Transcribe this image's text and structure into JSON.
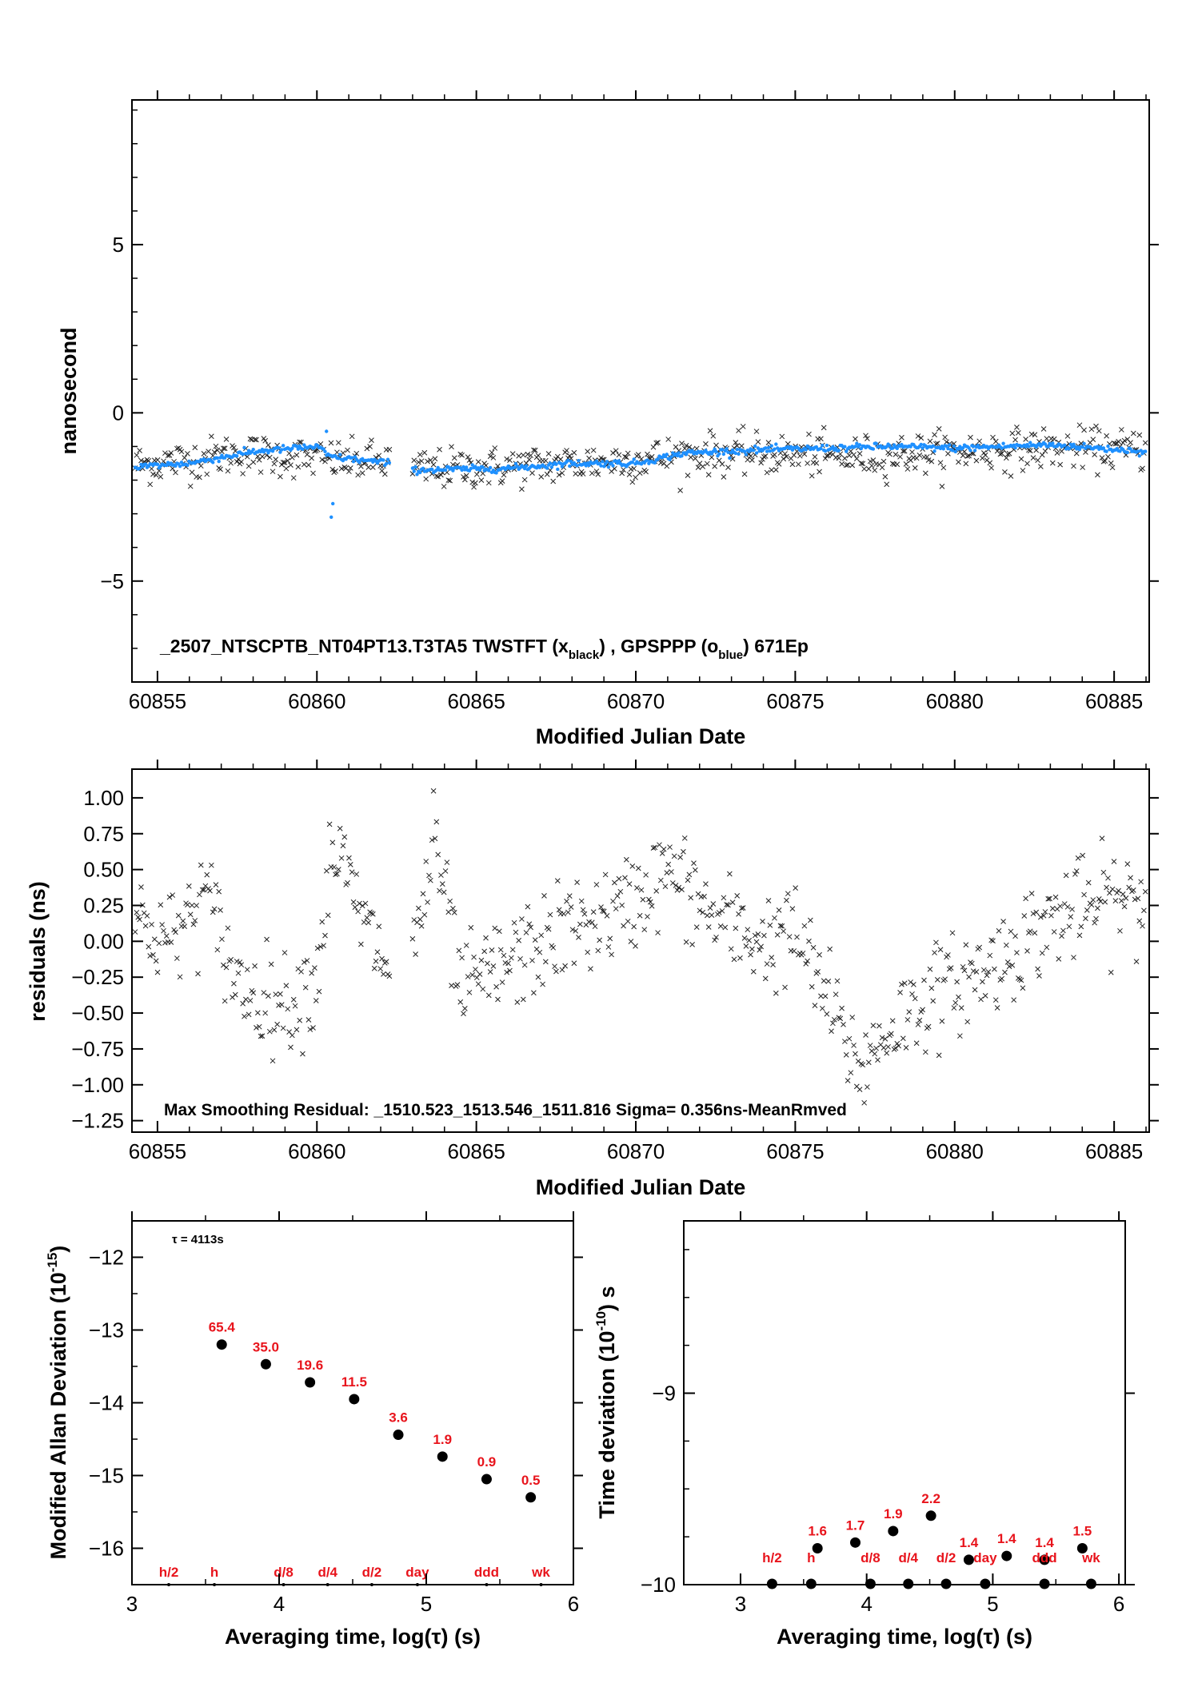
{
  "colors": {
    "twstft": "#222222",
    "gpsppp": "#1e90ff",
    "label": "#e8141c"
  },
  "chart_data": [
    {
      "type": "scatter",
      "xlabel": "Modified Julian Date",
      "ylabel": "nanosecond",
      "xlim": [
        60854.2,
        60886.1
      ],
      "ylim": [
        -8,
        9.3
      ],
      "xticks": [
        60855,
        60860,
        60865,
        60870,
        60875,
        60880,
        60885
      ],
      "yticks": [
        5,
        0,
        -5
      ],
      "ytick_labels": [
        "5",
        "0",
        "−5"
      ],
      "annotation": {
        "main": "_2507_NTSCPTB_NT04PT13.T3TA5     TWSTFT (x",
        "sub1": "black",
        "mid": ") ,  GPSPPP (o",
        "sub2": "blue",
        "end": ")  671Ep"
      },
      "series": [
        {
          "marker": "x",
          "color": "black",
          "segments": [
            [
              60854.3,
              60862.3
            ],
            [
              60863.0,
              60886.0
            ]
          ],
          "trend": [
            [
              60854.3,
              -1.55
            ],
            [
              60856.0,
              -1.4
            ],
            [
              60857.5,
              -1.2
            ],
            [
              60859.0,
              -1.3
            ],
            [
              60860.0,
              -1.35
            ],
            [
              60861.0,
              -1.45
            ],
            [
              60862.3,
              -1.45
            ],
            [
              60863.0,
              -1.7
            ],
            [
              60866.0,
              -1.6
            ],
            [
              60868.0,
              -1.5
            ],
            [
              60870.0,
              -1.4
            ],
            [
              60872.0,
              -1.2
            ],
            [
              60875.0,
              -1.25
            ],
            [
              60877.0,
              -1.3
            ],
            [
              60880.0,
              -1.15
            ],
            [
              60883.0,
              -1.05
            ],
            [
              60886.0,
              -1.1
            ]
          ],
          "noise_sd": 0.3
        },
        {
          "marker": "dot",
          "color": "#1e90ff",
          "segments": [
            [
              60854.3,
              60862.3
            ],
            [
              60863.0,
              60886.0
            ]
          ],
          "trend": [
            [
              60854.3,
              -1.6
            ],
            [
              60856.0,
              -1.5
            ],
            [
              60858.0,
              -1.15
            ],
            [
              60860.0,
              -1.0
            ],
            [
              60860.4,
              -1.3
            ],
            [
              60862.3,
              -1.5
            ],
            [
              60863.0,
              -1.7
            ],
            [
              60866.0,
              -1.65
            ],
            [
              60868.0,
              -1.5
            ],
            [
              60870.0,
              -1.5
            ],
            [
              60871.5,
              -1.2
            ],
            [
              60874.0,
              -1.1
            ],
            [
              60876.0,
              -1.05
            ],
            [
              60878.0,
              -1.0
            ],
            [
              60880.0,
              -1.05
            ],
            [
              60883.0,
              -0.95
            ],
            [
              60886.0,
              -1.15
            ]
          ],
          "noise_sd": 0.05,
          "spikes": [
            [
              60860.3,
              -0.55
            ],
            [
              60860.45,
              -3.1
            ],
            [
              60860.5,
              -2.7
            ]
          ]
        }
      ]
    },
    {
      "type": "scatter",
      "xlabel": "Modified Julian Date",
      "ylabel": "residuals (ns)",
      "xlim": [
        60854.2,
        60886.1
      ],
      "ylim": [
        -1.33,
        1.2
      ],
      "xticks": [
        60855,
        60860,
        60865,
        60870,
        60875,
        60880,
        60885
      ],
      "yticks": [
        1.0,
        0.75,
        0.5,
        0.25,
        0.0,
        -0.25,
        -0.5,
        -0.75,
        -1.0,
        -1.25
      ],
      "ytick_labels": [
        "1.00",
        "0.75",
        "0.50",
        "0.25",
        "0.00",
        "−0.25",
        "−0.50",
        "−0.75",
        "−1.00",
        "−1.25"
      ],
      "annotation": "Max Smoothing Residual: _1510.523_1513.546_1511.816  Sigma= 0.356ns-MeanRmved",
      "series": [
        {
          "marker": "x",
          "color": "black",
          "segments": [
            [
              60854.3,
              60862.3
            ],
            [
              60863.0,
              60886.0
            ]
          ],
          "trend": [
            [
              60854.3,
              0.15
            ],
            [
              60855.5,
              0.0
            ],
            [
              60856.5,
              0.35
            ],
            [
              60857.5,
              -0.3
            ],
            [
              60859.0,
              -0.45
            ],
            [
              60860.0,
              -0.25
            ],
            [
              60860.5,
              0.7
            ],
            [
              60861.5,
              0.1
            ],
            [
              60862.3,
              -0.2
            ],
            [
              60863.0,
              -0.1
            ],
            [
              60863.7,
              0.7
            ],
            [
              60864.5,
              -0.35
            ],
            [
              60866.0,
              -0.15
            ],
            [
              60868.0,
              0.1
            ],
            [
              60869.5,
              0.2
            ],
            [
              60871.0,
              0.5
            ],
            [
              60872.5,
              0.15
            ],
            [
              60874.0,
              0.0
            ],
            [
              60875.0,
              0.05
            ],
            [
              60876.0,
              -0.4
            ],
            [
              60877.0,
              -0.9
            ],
            [
              60878.0,
              -0.6
            ],
            [
              60879.0,
              -0.4
            ],
            [
              60881.0,
              -0.2
            ],
            [
              60883.0,
              0.15
            ],
            [
              60885.0,
              0.3
            ],
            [
              60886.0,
              0.25
            ]
          ],
          "noise_sd": 0.17
        }
      ]
    },
    {
      "type": "scatter",
      "xlabel": "Averaging time, log(τ) (s)",
      "ylabel": "Modified Allan Deviation",
      "ylabel_exp": "-15",
      "xlim": [
        3,
        6
      ],
      "ylim": [
        -16.5,
        -11.5
      ],
      "xticks": [
        3,
        4,
        5,
        6
      ],
      "yticks": [
        -12,
        -13,
        -14,
        -15,
        -16
      ],
      "ytick_labels": [
        "−12",
        "−13",
        "−14",
        "−15",
        "−16"
      ],
      "tau_note": "τ = 4113s",
      "points": [
        {
          "x": 3.61,
          "y": -13.2,
          "label": "65.4"
        },
        {
          "x": 3.91,
          "y": -13.47,
          "label": "35.0"
        },
        {
          "x": 4.21,
          "y": -13.72,
          "label": "19.6"
        },
        {
          "x": 4.51,
          "y": -13.95,
          "label": "11.5"
        },
        {
          "x": 4.81,
          "y": -14.44,
          "label": "3.6"
        },
        {
          "x": 5.11,
          "y": -14.74,
          "label": "1.9"
        },
        {
          "x": 5.41,
          "y": -15.05,
          "label": "0.9"
        },
        {
          "x": 5.71,
          "y": -15.3,
          "label": "0.5"
        }
      ],
      "markers": [
        {
          "x": 3.25,
          "label": "h/2"
        },
        {
          "x": 3.56,
          "label": "h"
        },
        {
          "x": 4.03,
          "label": "d/8"
        },
        {
          "x": 4.33,
          "label": "d/4"
        },
        {
          "x": 4.63,
          "label": "d/2"
        },
        {
          "x": 4.94,
          "label": "day"
        },
        {
          "x": 5.41,
          "label": "ddd"
        },
        {
          "x": 5.78,
          "label": "wk"
        }
      ]
    },
    {
      "type": "scatter",
      "xlabel": "Averaging time, log(τ) (s)",
      "ylabel": "Time deviation",
      "ylabel_exp": "-10",
      "ylabel_unit": "s",
      "xlim": [
        2.55,
        6.05
      ],
      "ylim": [
        -10,
        -8.1
      ],
      "xticks": [
        3,
        4,
        5,
        6
      ],
      "yticks": [
        -9,
        -10
      ],
      "ytick_labels": [
        "−9",
        "−10"
      ],
      "points": [
        {
          "x": 3.61,
          "y": -9.81,
          "label": "1.6"
        },
        {
          "x": 3.91,
          "y": -9.78,
          "label": "1.7"
        },
        {
          "x": 4.21,
          "y": -9.72,
          "label": "1.9"
        },
        {
          "x": 4.51,
          "y": -9.64,
          "label": "2.2"
        },
        {
          "x": 4.81,
          "y": -9.87,
          "label": "1.4"
        },
        {
          "x": 5.11,
          "y": -9.85,
          "label": "1.4"
        },
        {
          "x": 5.41,
          "y": -9.87,
          "label": "1.4"
        },
        {
          "x": 5.71,
          "y": -9.81,
          "label": "1.5"
        }
      ],
      "markers": [
        {
          "x": 3.25,
          "label": "h/2"
        },
        {
          "x": 3.56,
          "label": "h"
        },
        {
          "x": 4.03,
          "label": "d/8"
        },
        {
          "x": 4.33,
          "label": "d/4"
        },
        {
          "x": 4.63,
          "label": "d/2"
        },
        {
          "x": 4.94,
          "label": "day"
        },
        {
          "x": 5.41,
          "label": "ddd"
        },
        {
          "x": 5.78,
          "label": "wk"
        }
      ]
    }
  ]
}
